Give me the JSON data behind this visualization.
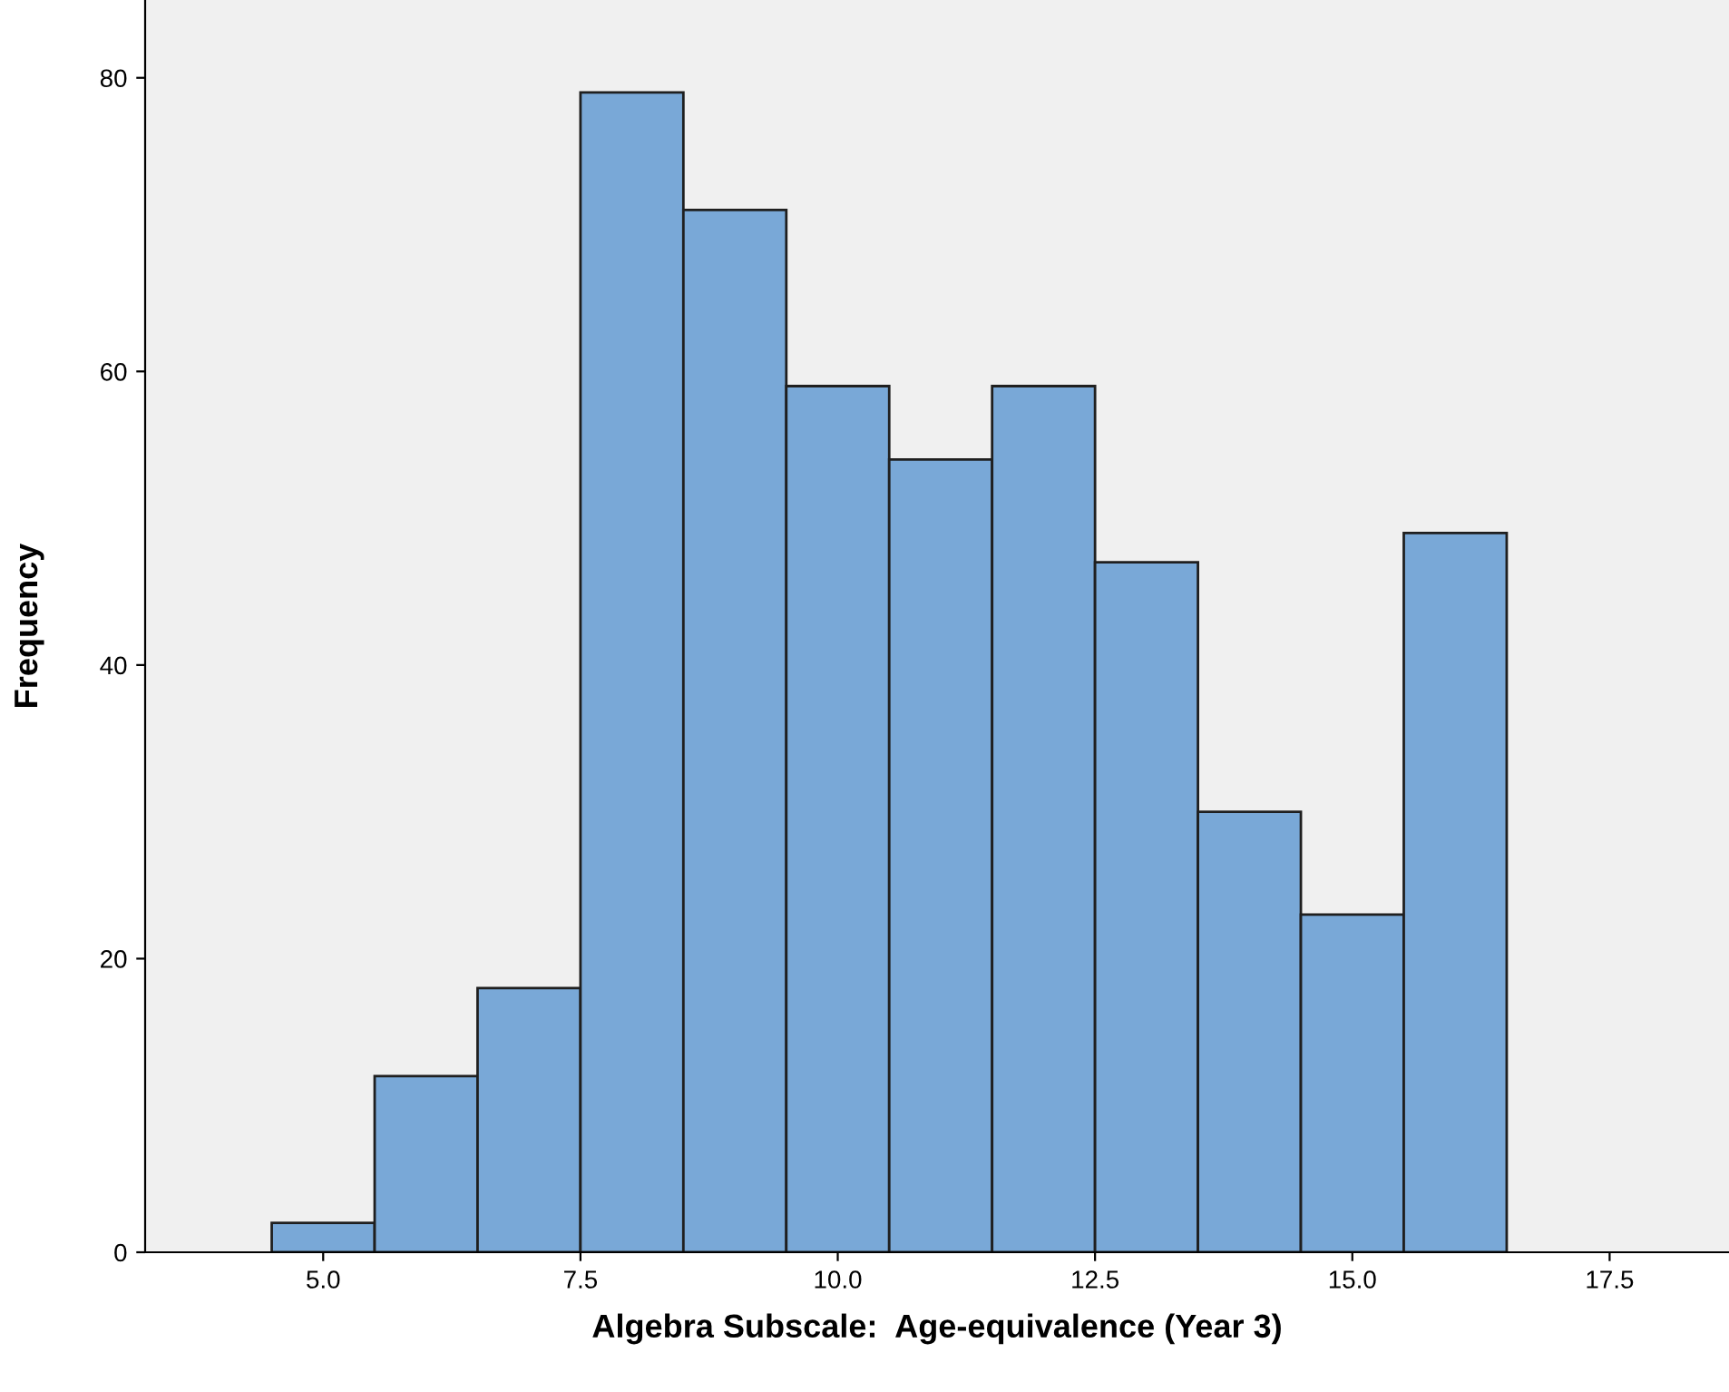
{
  "chart_data": {
    "type": "histogram",
    "xlabel": "Algebra Subscale:  Age-equivalence (Year 3)",
    "ylabel": "Frequency",
    "bins": [
      4.5,
      5.5,
      6.5,
      7.5,
      8.5,
      9.5,
      10.5,
      11.5,
      12.5,
      13.5,
      14.5,
      15.5,
      16.5
    ],
    "values": [
      2,
      12,
      18,
      79,
      71,
      59,
      54,
      59,
      47,
      30,
      23,
      49
    ],
    "color": "#79a8d7",
    "xlim": [
      3.27,
      18.66
    ],
    "ylim": [
      0,
      85.3
    ],
    "xticks": [
      {
        "value": 5,
        "label": "5.0"
      },
      {
        "value": 7.5,
        "label": "7.5"
      },
      {
        "value": 10,
        "label": "10.0"
      },
      {
        "value": 12.5,
        "label": "12.5"
      },
      {
        "value": 15,
        "label": "15.0"
      },
      {
        "value": 17.5,
        "label": "17.5"
      }
    ],
    "yticks": [
      0,
      20,
      40,
      60,
      80
    ],
    "grid": false
  }
}
